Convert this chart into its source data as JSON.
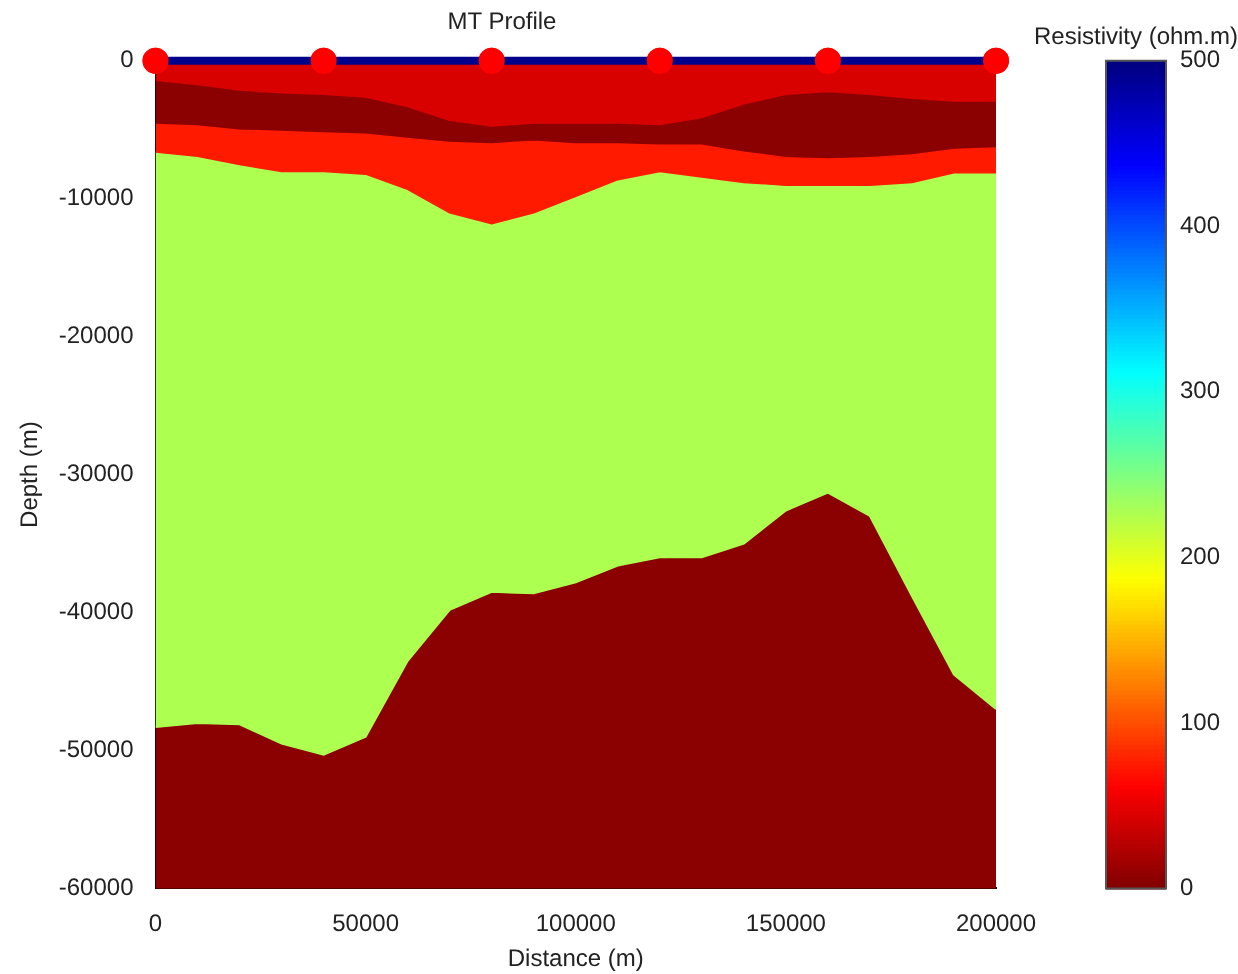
{
  "chart_data": {
    "type": "area",
    "title": "MT Profile",
    "xlabel": "Distance (m)",
    "ylabel": "Depth (m)",
    "clabel": "Resistivity (ohm.m)",
    "stacked": true,
    "x": [
      0,
      10000,
      20000,
      30000,
      40000,
      50000,
      60000,
      70000,
      80000,
      90000,
      100000,
      110000,
      120000,
      130000,
      140000,
      150000,
      160000,
      170000,
      180000,
      190000,
      200000
    ],
    "series": [
      {
        "color": "#d90000",
        "values": [
          -1400,
          -1700,
          -2100,
          -2300,
          -2400,
          -2600,
          -3300,
          -4300,
          -4700,
          -4500,
          -4500,
          -4500,
          -4600,
          -4100,
          -3100,
          -2400,
          -2200,
          -2400,
          -2700,
          -2900,
          -2900
        ]
      },
      {
        "color": "#8b0000",
        "values": [
          -3100,
          -2900,
          -2800,
          -2700,
          -2700,
          -2600,
          -2200,
          -1500,
          -1200,
          -1200,
          -1400,
          -1400,
          -1400,
          -1900,
          -3400,
          -4500,
          -4800,
          -4500,
          -4000,
          -3400,
          -3300
        ]
      },
      {
        "color": "#ff1a00",
        "values": [
          -2100,
          -2300,
          -2600,
          -3000,
          -2900,
          -3000,
          -3800,
          -5200,
          -5900,
          -5300,
          -3900,
          -2700,
          -2000,
          -2400,
          -2300,
          -2100,
          -2000,
          -2100,
          -2100,
          -1800,
          -1900
        ]
      },
      {
        "color": "#adff50",
        "values": [
          -41700,
          -41100,
          -40600,
          -41500,
          -42300,
          -40800,
          -34200,
          -28800,
          -26700,
          -27600,
          -28000,
          -28000,
          -28000,
          -27600,
          -26200,
          -23600,
          -22300,
          -24000,
          -30000,
          -36400,
          -38900
        ]
      },
      {
        "color": "#8b0000",
        "values": [
          -11700,
          -12000,
          -11900,
          -10500,
          -9700,
          -11000,
          -16500,
          -20200,
          -21500,
          -21400,
          -22200,
          -23400,
          -24000,
          -24000,
          -25000,
          -27400,
          -28700,
          -27000,
          -21200,
          -15500,
          -13000
        ]
      },
      {
        "type": "scatter",
        "color": "#ff0000",
        "marker": "circle",
        "x": [
          0,
          40000,
          80000,
          120000,
          160000,
          200000
        ],
        "values": [
          0,
          0,
          0,
          0,
          0,
          0
        ]
      }
    ],
    "ref_lines": [
      {
        "axis": "y",
        "value": 0,
        "color": "#00008b"
      }
    ],
    "xlim": [
      0,
      200000
    ],
    "xticks": [
      0,
      50000,
      100000,
      150000,
      200000
    ],
    "ylim": [
      -60000,
      0
    ],
    "yticks": [
      -60000,
      -50000,
      -40000,
      -30000,
      -20000,
      -10000,
      0
    ],
    "clim": [
      0,
      500
    ],
    "cticks": [
      0,
      100,
      200,
      300,
      400,
      500
    ],
    "grid": false,
    "legend": false
  }
}
